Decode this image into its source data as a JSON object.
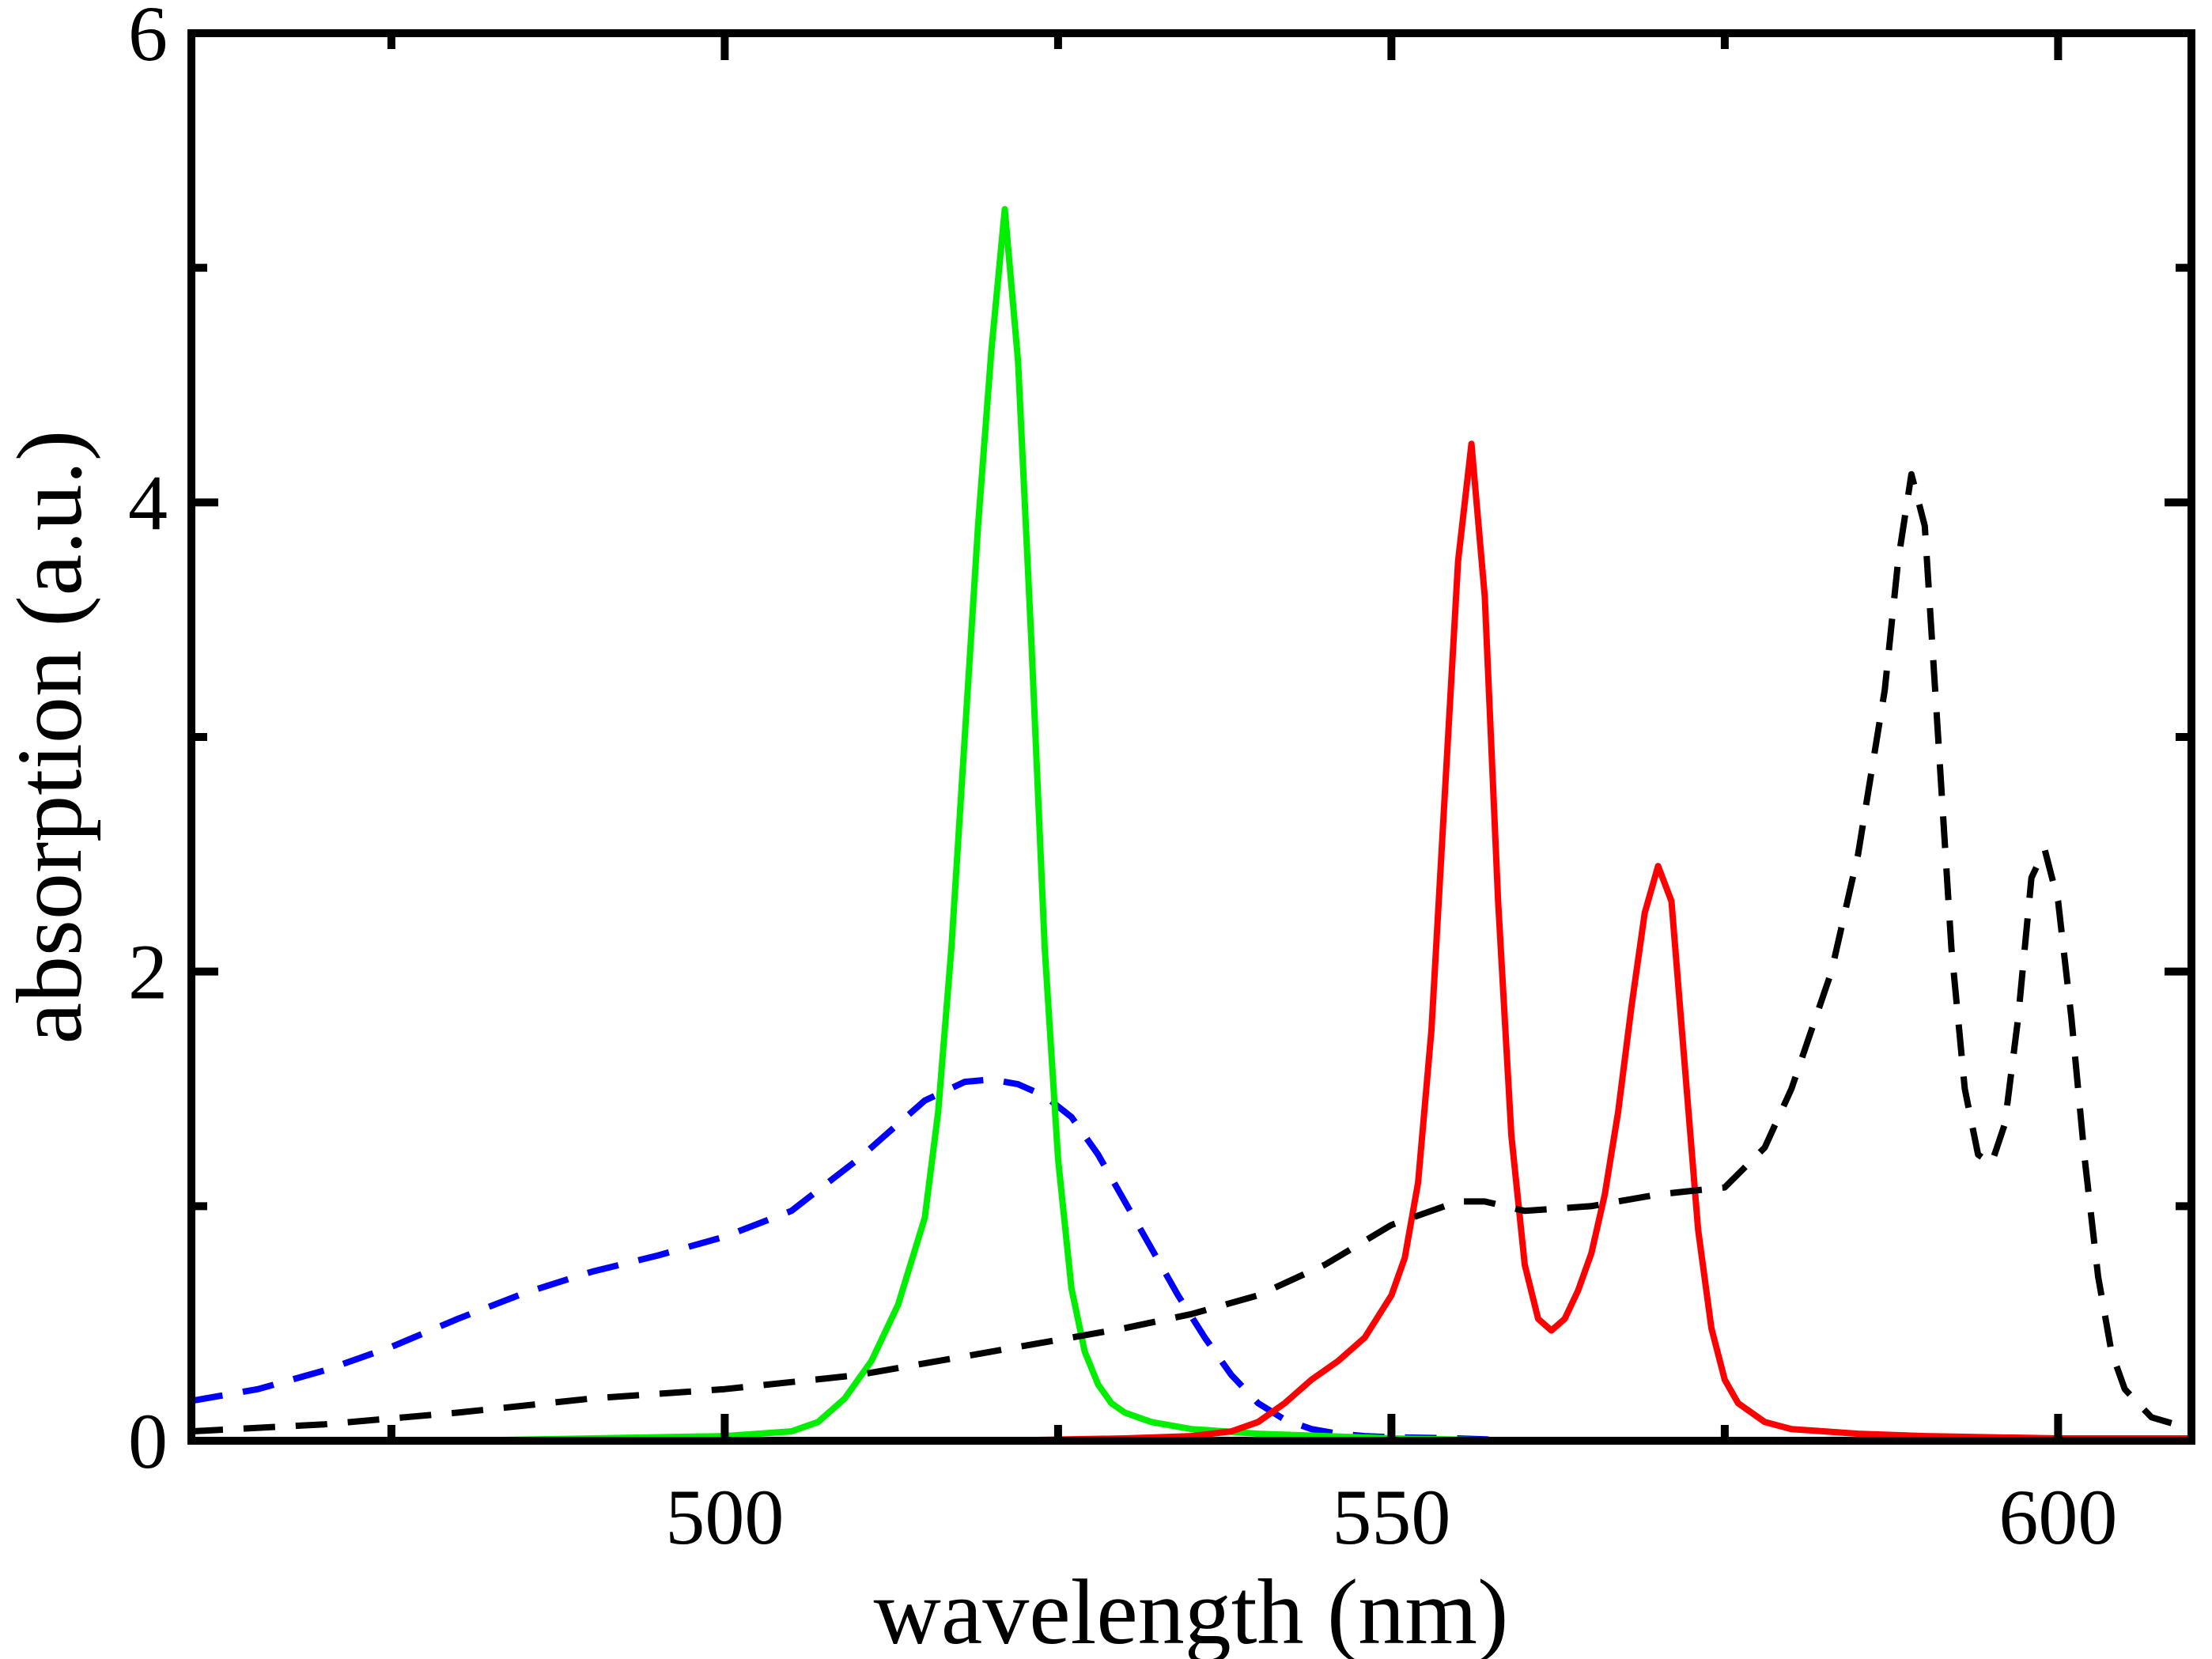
{
  "chart_data": {
    "type": "line",
    "title": "",
    "xlabel": "wavelength (nm)",
    "ylabel": "absorption (a.u.)",
    "xlim": [
      460,
      610
    ],
    "ylim": [
      0,
      6
    ],
    "xticks": [
      500,
      550,
      600
    ],
    "yticks": [
      0,
      2,
      4,
      6
    ],
    "xminor": [
      475,
      525,
      575
    ],
    "yminor": [
      1,
      3,
      5
    ],
    "grid": false,
    "legend": "none",
    "series": [
      {
        "name": "blue-dashed",
        "color": "#0000ff",
        "style": "dashed",
        "x": [
          460,
          465,
          470,
          475,
          480,
          485,
          490,
          495,
          500,
          505,
          510,
          512,
          515,
          518,
          520,
          522,
          524,
          526,
          528,
          530,
          532,
          534,
          536,
          538,
          540,
          542,
          544,
          546,
          548,
          550,
          555,
          560,
          570,
          580,
          590,
          600,
          610
        ],
        "y": [
          0.17,
          0.22,
          0.3,
          0.4,
          0.52,
          0.63,
          0.72,
          0.79,
          0.87,
          0.98,
          1.2,
          1.3,
          1.45,
          1.53,
          1.54,
          1.52,
          1.47,
          1.38,
          1.22,
          1.02,
          0.82,
          0.62,
          0.44,
          0.28,
          0.16,
          0.09,
          0.05,
          0.03,
          0.02,
          0.015,
          0.01,
          0.0,
          0.0,
          0.0,
          0.0,
          0.0,
          0.0
        ]
      },
      {
        "name": "green-solid",
        "color": "#00ee00",
        "style": "solid",
        "x": [
          460,
          480,
          500,
          505,
          507,
          509,
          511,
          513,
          515,
          516,
          517,
          518,
          519,
          520,
          521,
          522,
          523,
          524,
          525,
          526,
          527,
          528,
          529,
          530,
          532,
          535,
          540,
          550,
          560,
          580,
          610
        ],
        "y": [
          0.0,
          0.0,
          0.02,
          0.04,
          0.08,
          0.18,
          0.34,
          0.58,
          0.95,
          1.4,
          2.1,
          3.0,
          3.9,
          4.65,
          5.25,
          4.6,
          3.4,
          2.1,
          1.2,
          0.65,
          0.38,
          0.24,
          0.16,
          0.12,
          0.08,
          0.05,
          0.03,
          0.01,
          0.0,
          0.0,
          0.0
        ]
      },
      {
        "name": "red-solid",
        "color": "#ff0000",
        "style": "solid",
        "x": [
          460,
          500,
          520,
          530,
          535,
          538,
          540,
          542,
          544,
          546,
          548,
          550,
          551,
          552,
          553,
          554,
          555,
          556,
          557,
          558,
          559,
          560,
          561,
          562,
          563,
          564,
          565,
          566,
          567,
          568,
          569,
          570,
          571,
          572,
          573,
          574,
          575,
          576,
          578,
          580,
          585,
          590,
          600,
          610
        ],
        "y": [
          0.0,
          0.0,
          0.0,
          0.01,
          0.02,
          0.04,
          0.08,
          0.16,
          0.26,
          0.34,
          0.44,
          0.62,
          0.78,
          1.1,
          1.75,
          2.75,
          3.75,
          4.25,
          3.6,
          2.3,
          1.3,
          0.75,
          0.52,
          0.47,
          0.52,
          0.64,
          0.8,
          1.05,
          1.4,
          1.85,
          2.25,
          2.45,
          2.3,
          1.6,
          0.9,
          0.48,
          0.26,
          0.16,
          0.08,
          0.05,
          0.03,
          0.02,
          0.01,
          0.01
        ]
      },
      {
        "name": "black-dashed",
        "color": "#000000",
        "style": "dashed",
        "x": [
          460,
          470,
          480,
          490,
          500,
          510,
          520,
          530,
          535,
          540,
          545,
          550,
          555,
          557,
          560,
          565,
          570,
          575,
          578,
          580,
          583,
          585,
          587,
          588,
          589,
          590,
          591,
          592,
          593,
          594,
          595,
          596,
          597,
          598,
          599,
          600,
          601,
          602,
          603,
          604,
          605,
          607,
          610
        ],
        "y": [
          0.04,
          0.07,
          0.12,
          0.18,
          0.22,
          0.28,
          0.38,
          0.48,
          0.54,
          0.62,
          0.75,
          0.92,
          1.02,
          1.02,
          0.98,
          1.0,
          1.05,
          1.08,
          1.25,
          1.5,
          2.0,
          2.5,
          3.2,
          3.75,
          4.12,
          3.9,
          3.0,
          2.1,
          1.5,
          1.22,
          1.18,
          1.35,
          1.8,
          2.4,
          2.52,
          2.3,
          1.8,
          1.2,
          0.7,
          0.38,
          0.22,
          0.1,
          0.05
        ]
      }
    ]
  }
}
